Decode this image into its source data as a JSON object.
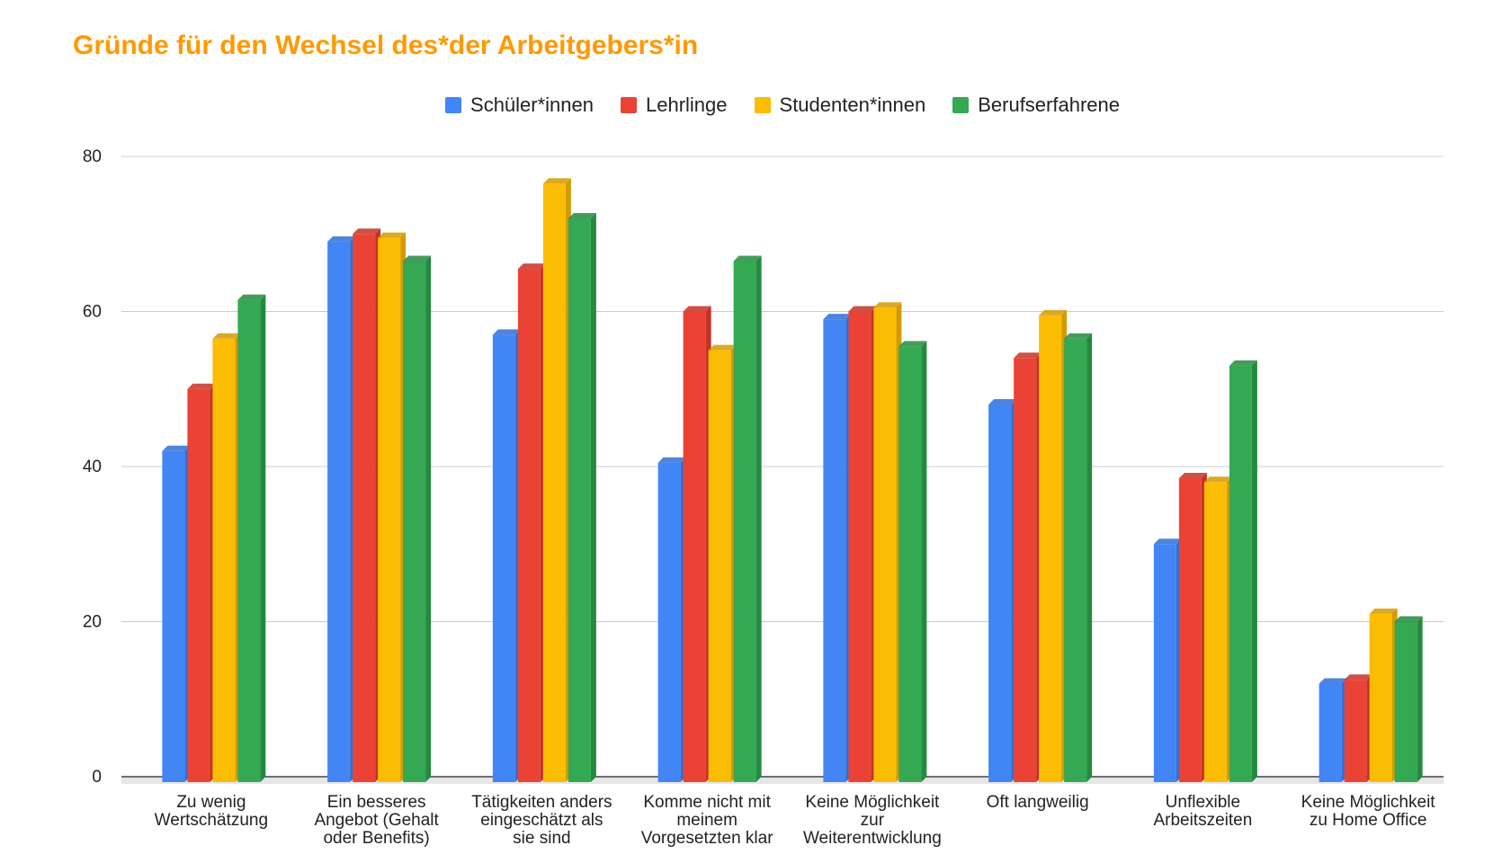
{
  "chart_data": {
    "type": "bar",
    "title": "Gründe für den Wechsel des*der Arbeitgebers*in",
    "categories": [
      [
        "Zu wenig",
        "Wertschätzung"
      ],
      [
        "Ein besseres",
        "Angebot (Gehalt",
        "oder Benefits)"
      ],
      [
        "Tätigkeiten anders",
        "eingeschätzt als",
        "sie sind"
      ],
      [
        "Komme nicht mit",
        "meinem",
        "Vorgesetzten klar"
      ],
      [
        "Keine Möglichkeit",
        "zur",
        "Weiterentwicklung"
      ],
      [
        "Oft langweilig"
      ],
      [
        "Unflexible",
        "Arbeitszeiten"
      ],
      [
        "Keine Möglichkeit",
        "zu Home Office"
      ]
    ],
    "series": [
      {
        "name": "Schüler*innen",
        "color": "#4285f4",
        "shade": "#2f6fd6",
        "values": [
          42,
          69,
          57,
          40.5,
          59,
          48,
          30,
          12
        ]
      },
      {
        "name": "Lehrlinge",
        "color": "#ea4335",
        "shade": "#c53227",
        "values": [
          50,
          70,
          65.5,
          60,
          60,
          54,
          38.5,
          12.5
        ]
      },
      {
        "name": "Studenten*innen",
        "color": "#fbbc04",
        "shade": "#d39b00",
        "values": [
          56.5,
          69.5,
          76.5,
          55,
          60.5,
          59.5,
          38,
          21
        ]
      },
      {
        "name": "Berufserfahrene",
        "color": "#34a853",
        "shade": "#248a40",
        "values": [
          61.5,
          66.5,
          72,
          66.5,
          55.5,
          56.5,
          53,
          20
        ]
      }
    ],
    "yticks": [
      0,
      20,
      40,
      60,
      80
    ],
    "ylim": [
      0,
      80
    ],
    "grid": true,
    "legend_position": "top-center"
  }
}
